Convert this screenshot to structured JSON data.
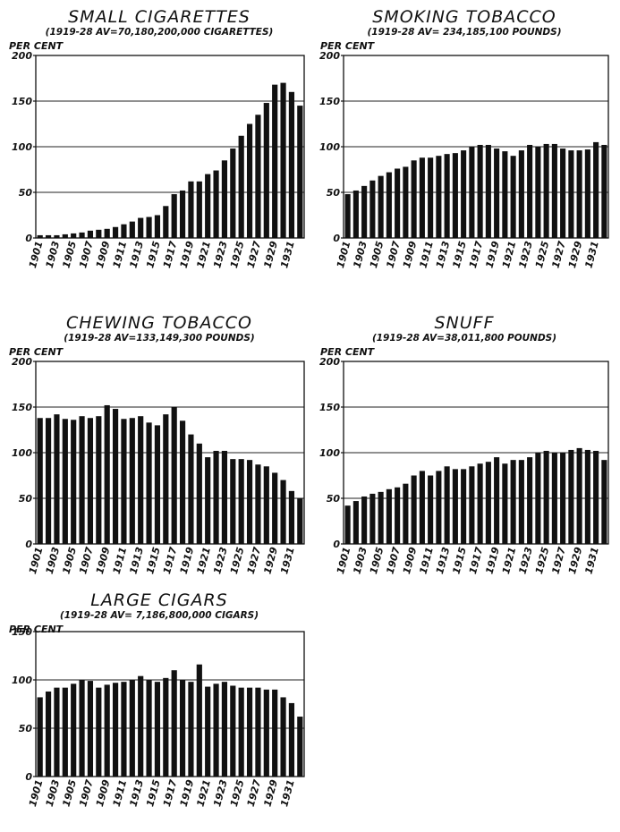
{
  "chart_data": [
    {
      "type": "bar",
      "title": "SMALL CIGARETTES",
      "subtitle": "(1919-28 AV=70,180,200,000 CIGARETTES)",
      "ylabel": "PER CENT",
      "ylim": [
        0,
        200
      ],
      "yticks": [
        "0",
        "50",
        "100",
        "150",
        "200"
      ],
      "xtick_labels": [
        "1901",
        "1903",
        "1905",
        "1907",
        "1909",
        "1911",
        "1913",
        "1915",
        "1917",
        "1919",
        "1921",
        "1923",
        "1925",
        "1927",
        "1929",
        "1931"
      ],
      "categories": [
        1901,
        1902,
        1903,
        1904,
        1905,
        1906,
        1907,
        1908,
        1909,
        1910,
        1911,
        1912,
        1913,
        1914,
        1915,
        1916,
        1917,
        1918,
        1919,
        1920,
        1921,
        1922,
        1923,
        1924,
        1925,
        1926,
        1927,
        1928,
        1929,
        1930,
        1931,
        1932
      ],
      "values": [
        3,
        3,
        3,
        4,
        5,
        6,
        8,
        9,
        10,
        12,
        15,
        18,
        22,
        23,
        25,
        35,
        48,
        52,
        62,
        62,
        70,
        74,
        85,
        98,
        112,
        125,
        135,
        148,
        168,
        170,
        160,
        145
      ],
      "grid": true
    },
    {
      "type": "bar",
      "title": "SMOKING TOBACCO",
      "subtitle": "(1919-28 AV= 234,185,100 POUNDS)",
      "ylabel": "PER CENT",
      "ylim": [
        0,
        200
      ],
      "yticks": [
        "0",
        "50",
        "100",
        "150",
        "200"
      ],
      "xtick_labels": [
        "1901",
        "1903",
        "1905",
        "1907",
        "1909",
        "1911",
        "1913",
        "1915",
        "1917",
        "1919",
        "1921",
        "1923",
        "1925",
        "1927",
        "1929",
        "1931"
      ],
      "categories": [
        1901,
        1902,
        1903,
        1904,
        1905,
        1906,
        1907,
        1908,
        1909,
        1910,
        1911,
        1912,
        1913,
        1914,
        1915,
        1916,
        1917,
        1918,
        1919,
        1920,
        1921,
        1922,
        1923,
        1924,
        1925,
        1926,
        1927,
        1928,
        1929,
        1930,
        1931,
        1932
      ],
      "values": [
        48,
        52,
        57,
        63,
        68,
        72,
        76,
        78,
        85,
        88,
        88,
        90,
        92,
        93,
        96,
        100,
        102,
        102,
        98,
        95,
        90,
        96,
        102,
        100,
        103,
        103,
        98,
        96,
        96,
        97,
        105,
        102
      ],
      "grid": true
    },
    {
      "type": "bar",
      "title": "CHEWING  TOBACCO",
      "subtitle": "(1919-28 AV=133,149,300 POUNDS)",
      "ylabel": "PER CENT",
      "ylim": [
        0,
        200
      ],
      "yticks": [
        "0",
        "50",
        "100",
        "150",
        "200"
      ],
      "xtick_labels": [
        "1901",
        "1903",
        "1905",
        "1907",
        "1909",
        "1911",
        "1913",
        "1915",
        "1917",
        "1919",
        "1921",
        "1923",
        "1925",
        "1927",
        "1929",
        "1931"
      ],
      "categories": [
        1901,
        1902,
        1903,
        1904,
        1905,
        1906,
        1907,
        1908,
        1909,
        1910,
        1911,
        1912,
        1913,
        1914,
        1915,
        1916,
        1917,
        1918,
        1919,
        1920,
        1921,
        1922,
        1923,
        1924,
        1925,
        1926,
        1927,
        1928,
        1929,
        1930,
        1931,
        1932
      ],
      "values": [
        138,
        138,
        142,
        137,
        136,
        140,
        138,
        140,
        152,
        148,
        137,
        138,
        140,
        133,
        130,
        142,
        150,
        135,
        120,
        110,
        95,
        102,
        102,
        93,
        93,
        92,
        87,
        85,
        78,
        70,
        58,
        50
      ],
      "grid": true
    },
    {
      "type": "bar",
      "title": "SNUFF",
      "subtitle": "(1919-28 AV=38,011,800 POUNDS)",
      "ylabel": "PER CENT",
      "ylim": [
        0,
        200
      ],
      "yticks": [
        "0",
        "50",
        "100",
        "150",
        "200"
      ],
      "xtick_labels": [
        "1901",
        "1903",
        "1905",
        "1907",
        "1909",
        "1911",
        "1913",
        "1915",
        "1917",
        "1919",
        "1921",
        "1923",
        "1925",
        "1927",
        "1929",
        "1931"
      ],
      "categories": [
        1901,
        1902,
        1903,
        1904,
        1905,
        1906,
        1907,
        1908,
        1909,
        1910,
        1911,
        1912,
        1913,
        1914,
        1915,
        1916,
        1917,
        1918,
        1919,
        1920,
        1921,
        1922,
        1923,
        1924,
        1925,
        1926,
        1927,
        1928,
        1929,
        1930,
        1931,
        1932
      ],
      "values": [
        42,
        47,
        52,
        55,
        57,
        60,
        62,
        66,
        75,
        80,
        75,
        80,
        85,
        82,
        82,
        85,
        88,
        90,
        95,
        88,
        92,
        92,
        95,
        100,
        102,
        100,
        100,
        103,
        105,
        103,
        102,
        92
      ],
      "grid": true
    },
    {
      "type": "bar",
      "title": "LARGE  CIGARS",
      "subtitle": "(1919-28  AV= 7,186,800,000  CIGARS)",
      "ylabel": "PER CENT",
      "ylim": [
        0,
        150
      ],
      "yticks": [
        "0",
        "50",
        "100",
        "150"
      ],
      "xtick_labels": [
        "1901",
        "1903",
        "1905",
        "1907",
        "1909",
        "1911",
        "1913",
        "1915",
        "1917",
        "1919",
        "1921",
        "1923",
        "1925",
        "1927",
        "1929",
        "1931"
      ],
      "categories": [
        1901,
        1902,
        1903,
        1904,
        1905,
        1906,
        1907,
        1908,
        1909,
        1910,
        1911,
        1912,
        1913,
        1914,
        1915,
        1916,
        1917,
        1918,
        1919,
        1920,
        1921,
        1922,
        1923,
        1924,
        1925,
        1926,
        1927,
        1928,
        1929,
        1930,
        1931,
        1932
      ],
      "values": [
        82,
        88,
        92,
        92,
        96,
        100,
        99,
        92,
        95,
        97,
        98,
        100,
        104,
        100,
        98,
        102,
        110,
        100,
        98,
        116,
        93,
        96,
        98,
        94,
        92,
        92,
        92,
        90,
        90,
        82,
        76,
        62
      ],
      "grid": true
    }
  ]
}
